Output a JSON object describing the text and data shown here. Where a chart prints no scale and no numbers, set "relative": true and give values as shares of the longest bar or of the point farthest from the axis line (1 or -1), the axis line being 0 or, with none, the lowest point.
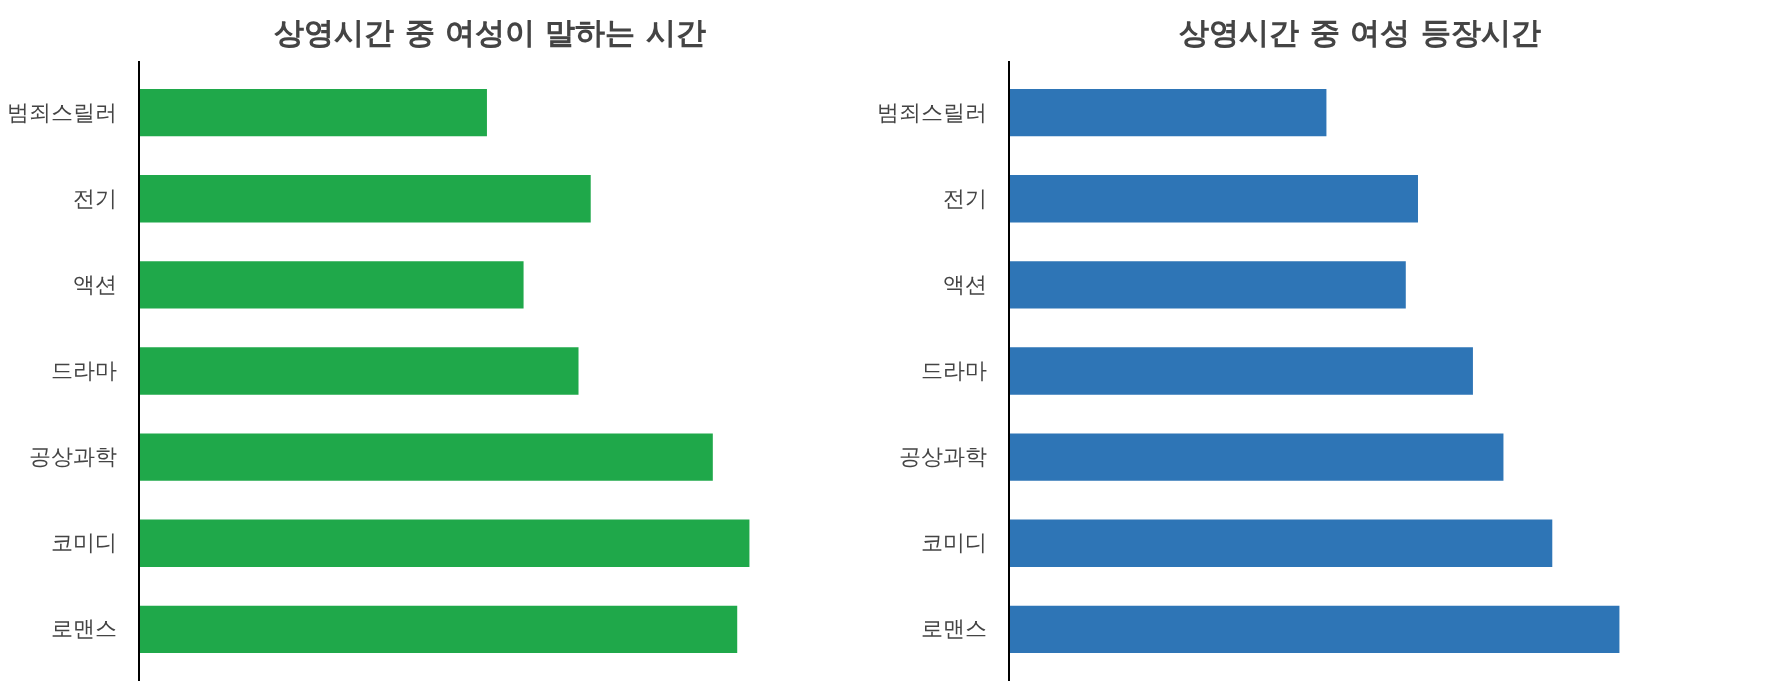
{
  "chart_data": [
    {
      "type": "bar",
      "orientation": "horizontal",
      "relative": true,
      "title": "상영시간 중 여성이 말하는 시간",
      "categories": [
        "범죄스릴러",
        "전기",
        "액션",
        "드라마",
        "공상과학",
        "코미디",
        "로맨스"
      ],
      "values": [
        0.57,
        0.74,
        0.63,
        0.72,
        0.94,
        1,
        0.98
      ],
      "color": "#1fa84a"
    },
    {
      "type": "bar",
      "orientation": "horizontal",
      "relative": true,
      "title": "상영시간 중 여성 등장시간",
      "categories": [
        "범죄스릴러",
        "전기",
        "액션",
        "드라마",
        "공상과학",
        "코미디",
        "로맨스"
      ],
      "values": [
        0.52,
        0.67,
        0.65,
        0.76,
        0.81,
        0.89,
        1
      ],
      "color": "#2e75b6"
    }
  ]
}
